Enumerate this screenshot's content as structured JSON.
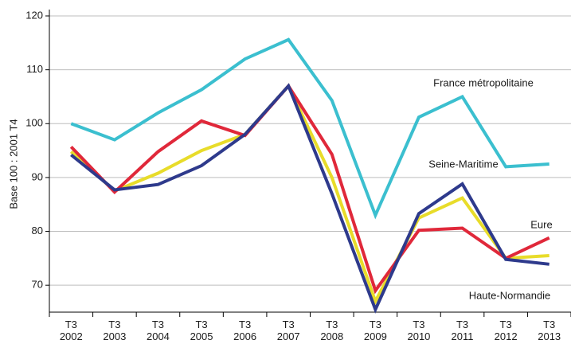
{
  "chart_data": {
    "type": "line",
    "ylabel": "Base 100 : 2001 T4",
    "categories": [
      "T3 2002",
      "T3 2003",
      "T3 2004",
      "T3 2005",
      "T3 2006",
      "T3 2007",
      "T3 2008",
      "T3 2009",
      "T3 2010",
      "T3 2011",
      "T3 2012",
      "T3 2013"
    ],
    "series": [
      {
        "name": "France métropolitaine",
        "color": "#3bbfcf",
        "values": [
          100,
          97,
          102,
          106.3,
          112,
          115.6,
          104.3,
          83,
          101.2,
          105,
          92,
          92.5
        ]
      },
      {
        "name": "Seine-Maritime",
        "color": "#e8dc2a",
        "values": [
          94.8,
          87.5,
          90.8,
          95,
          98,
          107,
          90,
          67,
          82.5,
          86.2,
          75,
          75.5
        ]
      },
      {
        "name": "Eure",
        "color": "#e0283a",
        "values": [
          95.7,
          87.3,
          94.8,
          100.5,
          97.8,
          107,
          94.3,
          69,
          80.2,
          80.6,
          75,
          78.8
        ]
      },
      {
        "name": "Haute-Normandie",
        "color": "#2e3a8c",
        "values": [
          94.2,
          87.7,
          88.7,
          92.2,
          98,
          107,
          87,
          65.5,
          83.3,
          88.8,
          74.8,
          73.9
        ]
      }
    ],
    "ylim": [
      65,
      120
    ],
    "yticks": [
      70,
      80,
      90,
      100,
      110,
      120
    ],
    "grid": true
  }
}
